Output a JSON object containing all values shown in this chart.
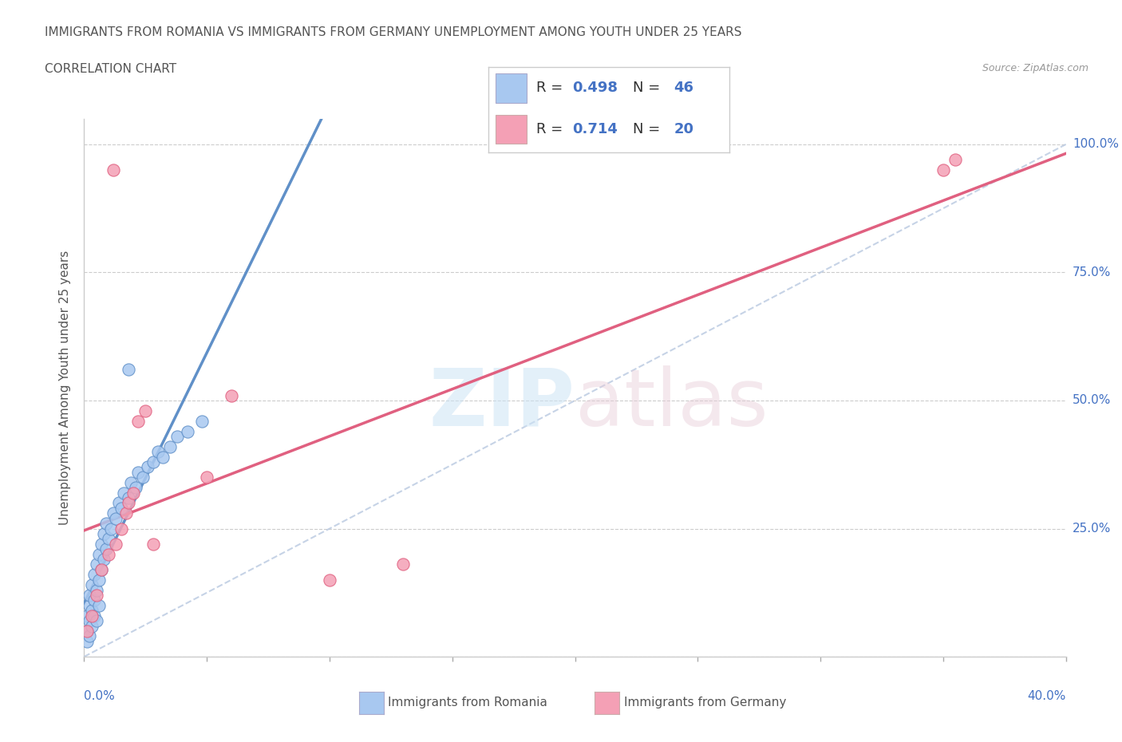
{
  "title_line1": "IMMIGRANTS FROM ROMANIA VS IMMIGRANTS FROM GERMANY UNEMPLOYMENT AMONG YOUTH UNDER 25 YEARS",
  "title_line2": "CORRELATION CHART",
  "source": "Source: ZipAtlas.com",
  "ylabel": "Unemployment Among Youth under 25 years",
  "romania_color": "#a8c8f0",
  "germany_color": "#f4a0b5",
  "trendline_romania_color": "#6090c8",
  "trendline_germany_color": "#e06080",
  "diag_color": "#b8c8e0",
  "legend_R1": "0.498",
  "legend_N1": "46",
  "legend_R2": "0.714",
  "legend_N2": "20",
  "watermark_zip": "ZIP",
  "watermark_atlas": "atlas",
  "background_color": "#ffffff",
  "romania_x": [
    0.001,
    0.001,
    0.001,
    0.002,
    0.002,
    0.002,
    0.002,
    0.003,
    0.003,
    0.003,
    0.004,
    0.004,
    0.004,
    0.005,
    0.005,
    0.005,
    0.006,
    0.006,
    0.006,
    0.007,
    0.007,
    0.008,
    0.008,
    0.009,
    0.009,
    0.01,
    0.011,
    0.012,
    0.013,
    0.014,
    0.015,
    0.016,
    0.018,
    0.019,
    0.021,
    0.022,
    0.024,
    0.026,
    0.028,
    0.03,
    0.032,
    0.035,
    0.038,
    0.042,
    0.048,
    0.018
  ],
  "romania_y": [
    0.05,
    0.08,
    0.03,
    0.1,
    0.07,
    0.12,
    0.04,
    0.09,
    0.14,
    0.06,
    0.11,
    0.16,
    0.08,
    0.13,
    0.18,
    0.07,
    0.15,
    0.2,
    0.1,
    0.17,
    0.22,
    0.19,
    0.24,
    0.21,
    0.26,
    0.23,
    0.25,
    0.28,
    0.27,
    0.3,
    0.29,
    0.32,
    0.31,
    0.34,
    0.33,
    0.36,
    0.35,
    0.37,
    0.38,
    0.4,
    0.39,
    0.41,
    0.43,
    0.44,
    0.46,
    0.56
  ],
  "germany_x": [
    0.001,
    0.003,
    0.005,
    0.007,
    0.01,
    0.012,
    0.013,
    0.015,
    0.017,
    0.018,
    0.02,
    0.022,
    0.025,
    0.028,
    0.05,
    0.06,
    0.1,
    0.13,
    0.35,
    0.355
  ],
  "germany_y": [
    0.05,
    0.08,
    0.12,
    0.17,
    0.2,
    0.95,
    0.22,
    0.25,
    0.28,
    0.3,
    0.32,
    0.46,
    0.48,
    0.22,
    0.35,
    0.51,
    0.15,
    0.18,
    0.95,
    0.97
  ],
  "xlim": [
    0,
    0.4
  ],
  "ylim": [
    0,
    1.05
  ],
  "x_ticks": [
    0.0,
    0.05,
    0.1,
    0.15,
    0.2,
    0.25,
    0.3,
    0.35,
    0.4
  ],
  "y_ticks": [
    0.0,
    0.25,
    0.5,
    0.75,
    1.0
  ],
  "y_tick_labels": [
    "",
    "25.0%",
    "50.0%",
    "75.0%",
    "100.0%"
  ]
}
